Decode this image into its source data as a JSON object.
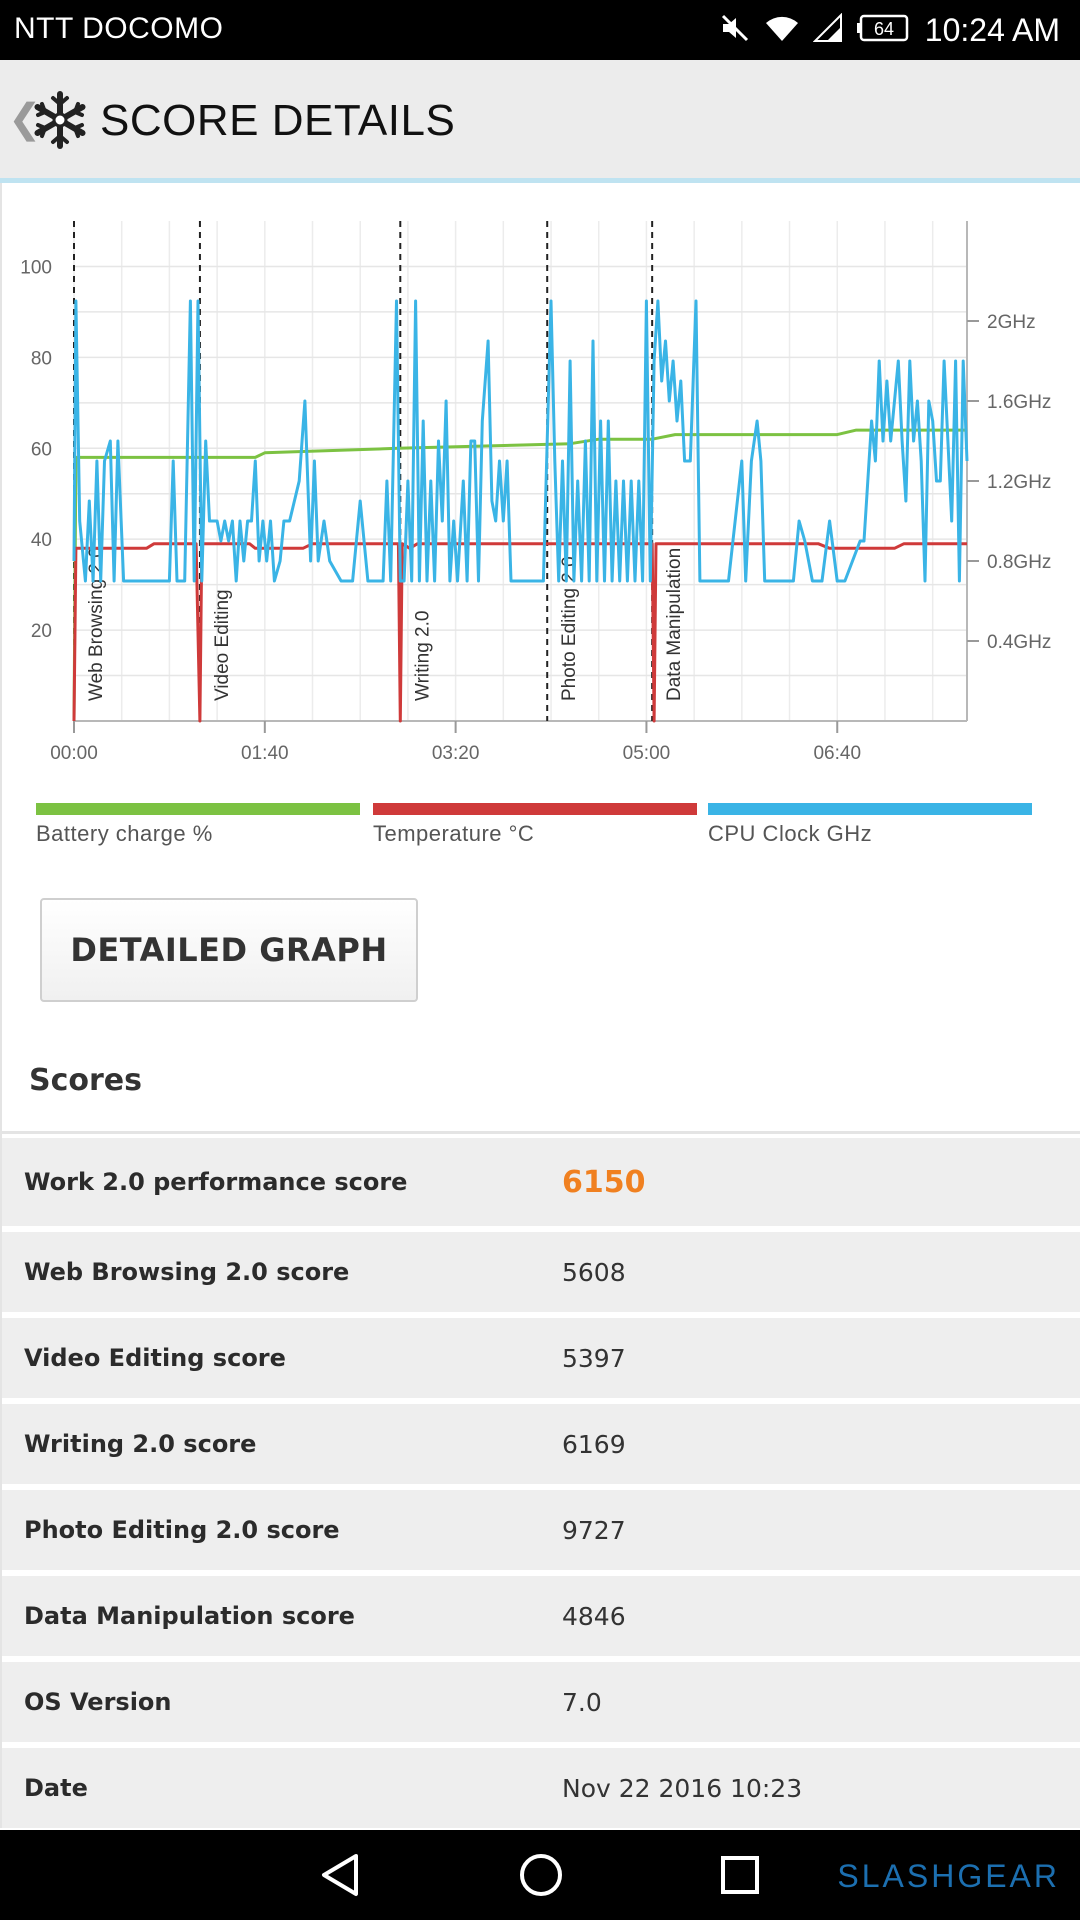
{
  "status_bar": {
    "carrier": "NTT DOCOMO",
    "battery": "64",
    "time": "10:24 AM"
  },
  "app_bar": {
    "title": "SCORE DETAILS"
  },
  "chart_data": {
    "type": "line",
    "x_ticks": [
      "00:00",
      "01:40",
      "03:20",
      "05:00",
      "06:40"
    ],
    "x_tick_seconds": [
      0,
      100,
      200,
      300,
      400
    ],
    "x_range": [
      0,
      468
    ],
    "y_left": {
      "range": [
        0,
        110
      ],
      "ticks": [
        20,
        40,
        60,
        80,
        100
      ]
    },
    "y_right": {
      "range_ghz": [
        0,
        2.5
      ],
      "ticks": [
        "0.4GHz",
        "0.8GHz",
        "1.2GHz",
        "1.6GHz",
        "2GHz"
      ],
      "tick_values": [
        0.4,
        0.8,
        1.2,
        1.6,
        2.0
      ]
    },
    "sections": [
      {
        "label": "Web Browsing 2.0",
        "t": 0
      },
      {
        "label": "Video Editing",
        "t": 66
      },
      {
        "label": "Writing 2.0",
        "t": 171
      },
      {
        "label": "Photo Editing 2.0",
        "t": 248
      },
      {
        "label": "Data Manipulation",
        "t": 303
      }
    ],
    "series": [
      {
        "name": "Battery charge %",
        "color": "#7cc242",
        "axis": "left",
        "points": [
          [
            0,
            0
          ],
          [
            1,
            58
          ],
          [
            20,
            58
          ],
          [
            60,
            58
          ],
          [
            95,
            58
          ],
          [
            100,
            59
          ],
          [
            170,
            60
          ],
          [
            260,
            61
          ],
          [
            275,
            62
          ],
          [
            303,
            62
          ],
          [
            315,
            63
          ],
          [
            345,
            63
          ],
          [
            350,
            63
          ],
          [
            400,
            63
          ],
          [
            410,
            64
          ],
          [
            468,
            64
          ]
        ]
      },
      {
        "name": "Temperature °C",
        "color": "#cf3a3a",
        "axis": "left",
        "points": [
          [
            0,
            0
          ],
          [
            1,
            38
          ],
          [
            38,
            38
          ],
          [
            42,
            39
          ],
          [
            64,
            39
          ],
          [
            66,
            0
          ],
          [
            67,
            39
          ],
          [
            92,
            39
          ],
          [
            95,
            38
          ],
          [
            120,
            38
          ],
          [
            125,
            39
          ],
          [
            170,
            39
          ],
          [
            171,
            0
          ],
          [
            172,
            39
          ],
          [
            176,
            38
          ],
          [
            180,
            39
          ],
          [
            250,
            39
          ],
          [
            260,
            39
          ],
          [
            303,
            39
          ],
          [
            304,
            0
          ],
          [
            305,
            39
          ],
          [
            390,
            39
          ],
          [
            396,
            38
          ],
          [
            430,
            38
          ],
          [
            435,
            39
          ],
          [
            468,
            39
          ]
        ]
      },
      {
        "name": "CPU Clock GHz",
        "color": "#3ab4e6",
        "axis": "right",
        "points": [
          [
            0,
            0.8
          ],
          [
            1,
            2.1
          ],
          [
            3,
            1.0
          ],
          [
            6,
            0.7
          ],
          [
            8,
            1.1
          ],
          [
            10,
            0.7
          ],
          [
            12,
            1.3
          ],
          [
            14,
            0.7
          ],
          [
            16,
            1.3
          ],
          [
            19,
            1.4
          ],
          [
            21,
            0.7
          ],
          [
            23,
            1.4
          ],
          [
            26,
            0.7
          ],
          [
            40,
            0.7
          ],
          [
            50,
            0.7
          ],
          [
            52,
            1.3
          ],
          [
            54,
            0.7
          ],
          [
            58,
            0.7
          ],
          [
            61,
            2.1
          ],
          [
            63,
            0.7
          ],
          [
            65,
            2.1
          ],
          [
            67,
            0.7
          ],
          [
            69,
            1.4
          ],
          [
            71,
            1.0
          ],
          [
            73,
            1.0
          ],
          [
            75,
            1.0
          ],
          [
            77,
            0.9
          ],
          [
            79,
            1.0
          ],
          [
            81,
            0.9
          ],
          [
            83,
            1.0
          ],
          [
            85,
            0.7
          ],
          [
            87,
            1.0
          ],
          [
            89,
            0.8
          ],
          [
            91,
            1.0
          ],
          [
            93,
            1.0
          ],
          [
            95,
            1.3
          ],
          [
            97,
            0.8
          ],
          [
            99,
            1.0
          ],
          [
            101,
            0.8
          ],
          [
            103,
            1.0
          ],
          [
            105,
            0.7
          ],
          [
            108,
            0.8
          ],
          [
            110,
            1.0
          ],
          [
            113,
            1.0
          ],
          [
            118,
            1.2
          ],
          [
            121,
            1.6
          ],
          [
            124,
            0.8
          ],
          [
            126,
            1.3
          ],
          [
            128,
            0.8
          ],
          [
            131,
            1.0
          ],
          [
            134,
            0.8
          ],
          [
            140,
            0.7
          ],
          [
            146,
            0.7
          ],
          [
            150,
            1.1
          ],
          [
            154,
            0.7
          ],
          [
            158,
            0.7
          ],
          [
            162,
            0.7
          ],
          [
            164,
            1.2
          ],
          [
            166,
            0.7
          ],
          [
            169,
            2.1
          ],
          [
            171,
            0.7
          ],
          [
            173,
            0.7
          ],
          [
            175,
            1.2
          ],
          [
            177,
            0.7
          ],
          [
            179,
            2.1
          ],
          [
            181,
            0.7
          ],
          [
            183,
            1.5
          ],
          [
            185,
            0.7
          ],
          [
            187,
            1.2
          ],
          [
            189,
            0.7
          ],
          [
            191,
            1.4
          ],
          [
            193,
            1.0
          ],
          [
            195,
            1.6
          ],
          [
            197,
            0.7
          ],
          [
            199,
            1.0
          ],
          [
            201,
            0.7
          ],
          [
            204,
            1.2
          ],
          [
            206,
            0.7
          ],
          [
            208,
            1.4
          ],
          [
            210,
            1.4
          ],
          [
            212,
            0.7
          ],
          [
            214,
            1.5
          ],
          [
            217,
            1.9
          ],
          [
            219,
            1.1
          ],
          [
            221,
            1.0
          ],
          [
            223,
            1.3
          ],
          [
            225,
            1.0
          ],
          [
            227,
            1.3
          ],
          [
            229,
            0.7
          ],
          [
            232,
            0.7
          ],
          [
            240,
            0.7
          ],
          [
            246,
            0.7
          ],
          [
            250,
            2.1
          ],
          [
            252,
            1.3
          ],
          [
            254,
            0.7
          ],
          [
            256,
            1.3
          ],
          [
            258,
            0.7
          ],
          [
            260,
            1.8
          ],
          [
            262,
            0.7
          ],
          [
            264,
            1.2
          ],
          [
            266,
            0.7
          ],
          [
            268,
            1.4
          ],
          [
            270,
            0.7
          ],
          [
            272,
            1.9
          ],
          [
            274,
            0.7
          ],
          [
            276,
            1.5
          ],
          [
            278,
            0.7
          ],
          [
            280,
            1.5
          ],
          [
            282,
            0.7
          ],
          [
            284,
            1.2
          ],
          [
            286,
            0.7
          ],
          [
            288,
            1.2
          ],
          [
            290,
            0.7
          ],
          [
            292,
            1.2
          ],
          [
            294,
            0.7
          ],
          [
            296,
            1.2
          ],
          [
            298,
            0.7
          ],
          [
            300,
            2.1
          ],
          [
            302,
            0.7
          ],
          [
            304,
            1.8
          ],
          [
            306,
            2.1
          ],
          [
            308,
            1.7
          ],
          [
            310,
            1.9
          ],
          [
            312,
            1.6
          ],
          [
            314,
            1.8
          ],
          [
            316,
            1.5
          ],
          [
            318,
            1.7
          ],
          [
            320,
            1.3
          ],
          [
            323,
            1.3
          ],
          [
            326,
            2.1
          ],
          [
            328,
            0.7
          ],
          [
            333,
            0.7
          ],
          [
            343,
            0.7
          ],
          [
            350,
            1.3
          ],
          [
            352,
            0.7
          ],
          [
            355,
            1.3
          ],
          [
            358,
            1.5
          ],
          [
            360,
            1.3
          ],
          [
            362,
            0.7
          ],
          [
            365,
            0.7
          ],
          [
            377,
            0.7
          ],
          [
            380,
            1.0
          ],
          [
            383,
            0.9
          ],
          [
            387,
            0.7
          ],
          [
            392,
            0.7
          ],
          [
            396,
            1.0
          ],
          [
            400,
            0.7
          ],
          [
            404,
            0.7
          ],
          [
            412,
            0.9
          ],
          [
            414,
            0.9
          ],
          [
            416,
            1.2
          ],
          [
            418,
            1.5
          ],
          [
            420,
            1.3
          ],
          [
            422,
            1.8
          ],
          [
            424,
            1.4
          ],
          [
            426,
            1.7
          ],
          [
            428,
            1.4
          ],
          [
            430,
            1.6
          ],
          [
            432,
            1.8
          ],
          [
            434,
            1.4
          ],
          [
            436,
            1.1
          ],
          [
            438,
            1.8
          ],
          [
            440,
            1.4
          ],
          [
            442,
            1.6
          ],
          [
            444,
            1.3
          ],
          [
            446,
            0.7
          ],
          [
            448,
            1.6
          ],
          [
            450,
            1.5
          ],
          [
            452,
            1.2
          ],
          [
            454,
            1.2
          ],
          [
            456,
            1.8
          ],
          [
            458,
            1.4
          ],
          [
            460,
            1.0
          ],
          [
            462,
            1.8
          ],
          [
            464,
            0.7
          ],
          [
            466,
            1.8
          ],
          [
            468,
            1.3
          ]
        ]
      }
    ]
  },
  "legend": [
    {
      "label": "Battery charge %",
      "color": "#7cc242"
    },
    {
      "label": "Temperature °C",
      "color": "#cf3a3a"
    },
    {
      "label": "CPU Clock GHz",
      "color": "#3ab4e6"
    }
  ],
  "button": {
    "label": "DETAILED GRAPH"
  },
  "scores": {
    "heading": "Scores",
    "rows": [
      {
        "label": "Work 2.0 performance score",
        "value": "6150"
      },
      {
        "label": "Web Browsing 2.0 score",
        "value": "5608"
      },
      {
        "label": "Video Editing score",
        "value": "5397"
      },
      {
        "label": "Writing 2.0 score",
        "value": "6169"
      },
      {
        "label": "Photo Editing 2.0 score",
        "value": "9727"
      },
      {
        "label": "Data Manipulation score",
        "value": "4846"
      },
      {
        "label": "OS Version",
        "value": "7.0"
      },
      {
        "label": "Date",
        "value": "Nov 22 2016 10:23"
      }
    ]
  },
  "watermark": "SLASHGEAR"
}
